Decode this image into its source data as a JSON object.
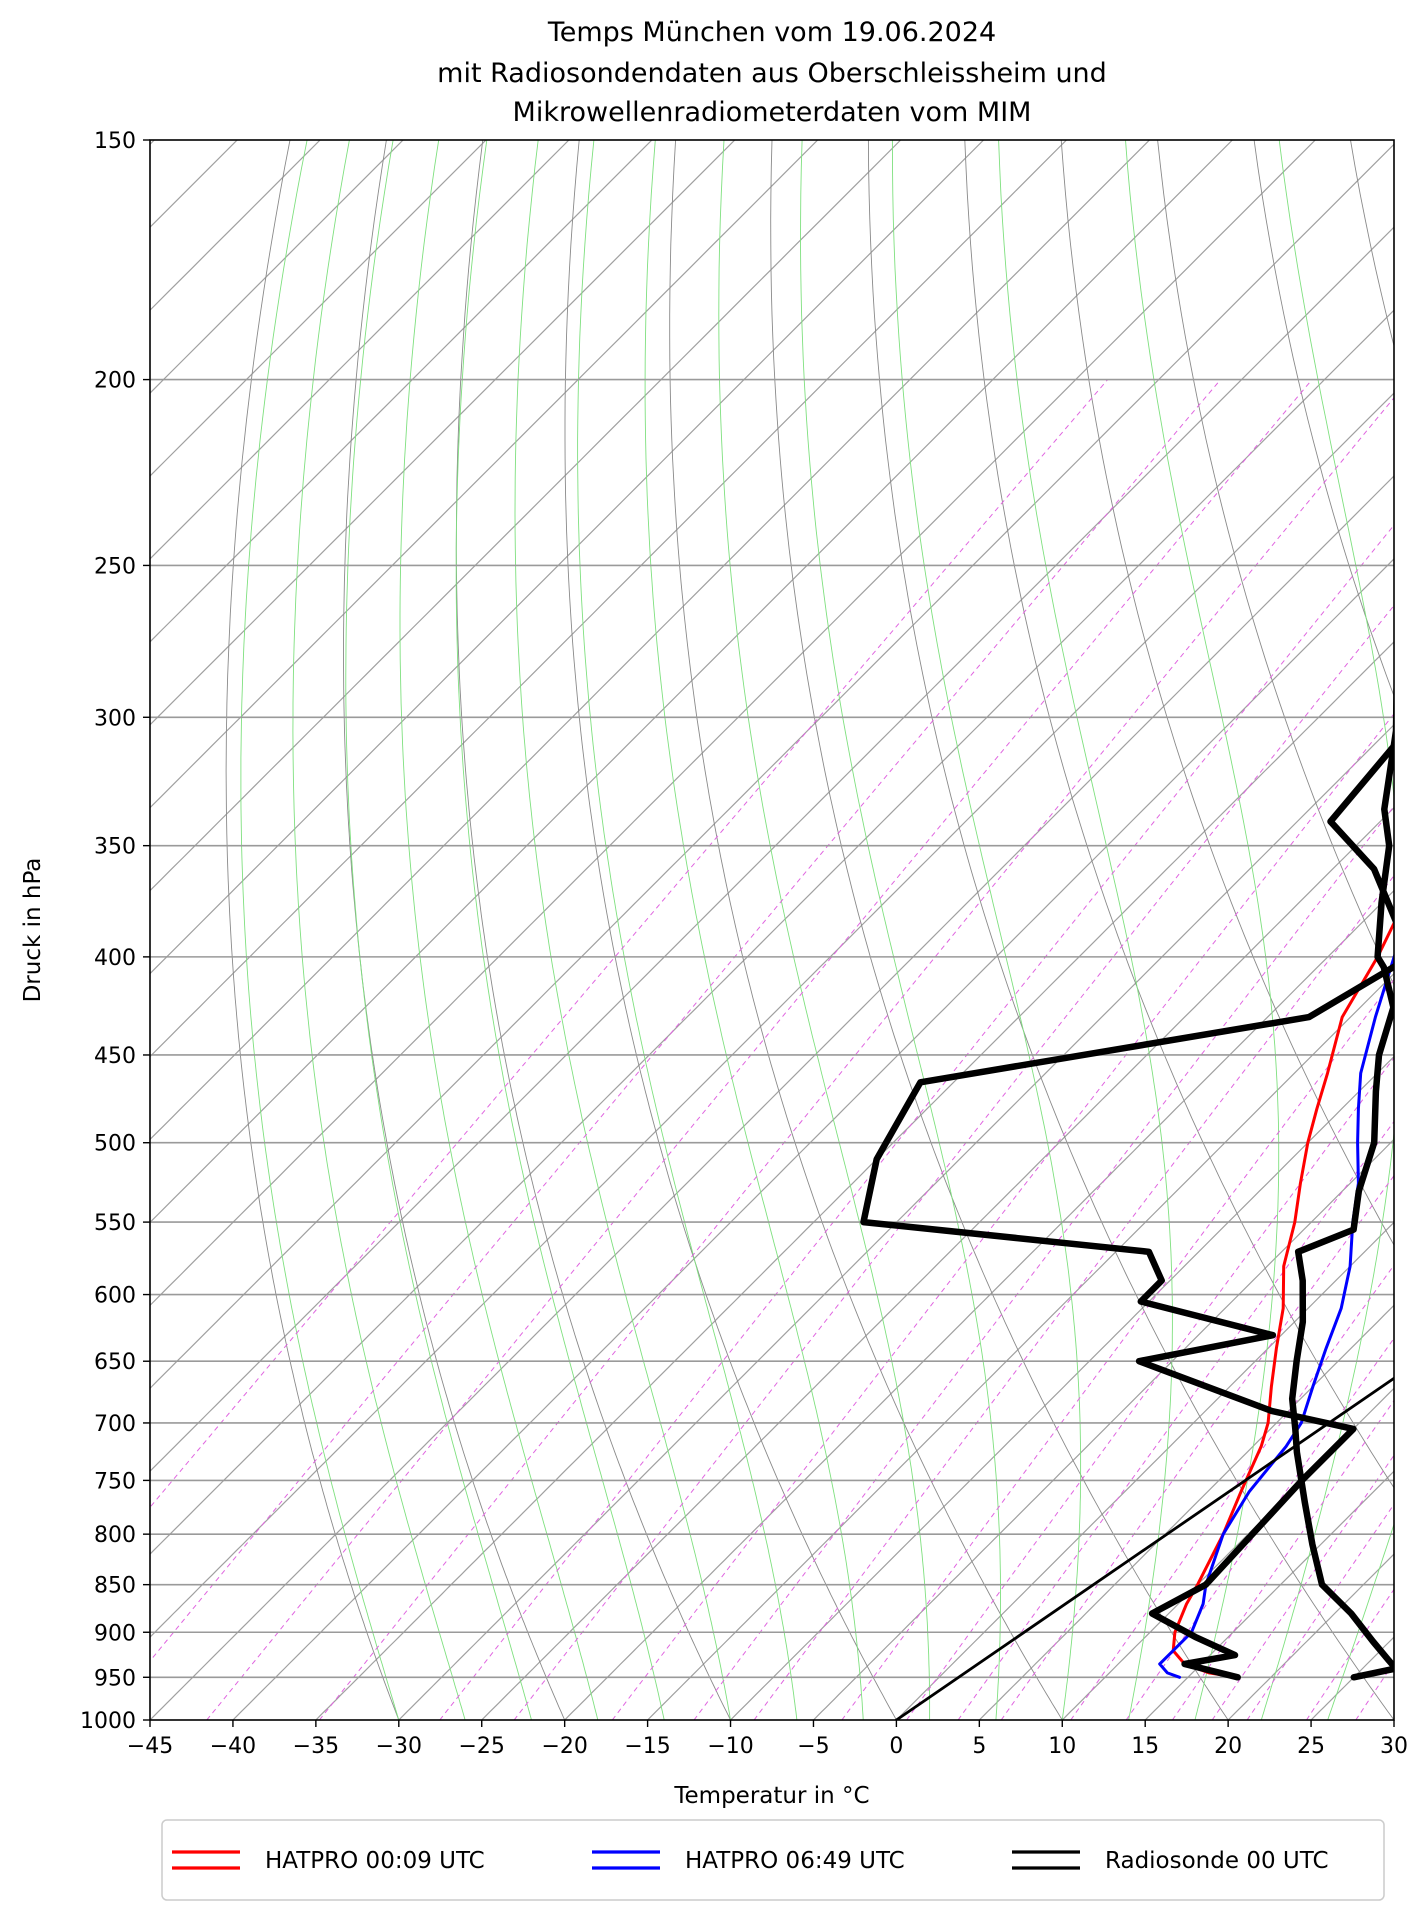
{
  "chart_data": {
    "type": "skew-t",
    "title": [
      "Temps München vom 19.06.2024",
      "mit Radiosondendaten aus Oberschleissheim und",
      "Mikrowellenradiometerdaten vom MIM"
    ],
    "xlabel": "Temperatur in °C",
    "ylabel": "Druck in hPa",
    "xlim": [
      -45,
      30
    ],
    "ylim": [
      1000,
      150
    ],
    "yscale": "log",
    "x_ticks": [
      "−45",
      "−40",
      "−35",
      "−30",
      "−25",
      "−20",
      "−15",
      "−10",
      "−5",
      "0",
      "5",
      "10",
      "15",
      "20",
      "25",
      "30"
    ],
    "y_ticks": [
      "150",
      "200",
      "250",
      "300",
      "350",
      "400",
      "450",
      "500",
      "550",
      "600",
      "650",
      "700",
      "750",
      "800",
      "850",
      "900",
      "950",
      "1000"
    ],
    "grid": true,
    "legend_position": "bottom",
    "series": [
      {
        "name": "HATPRO 00:09 UTC",
        "color": "#ff0000",
        "points": [
          [
            18,
            950
          ],
          [
            16,
            945
          ],
          [
            14,
            935
          ],
          [
            12.5,
            920
          ],
          [
            11.5,
            900
          ],
          [
            10.5,
            870
          ],
          [
            10,
            850
          ],
          [
            8.5,
            800
          ],
          [
            7,
            760
          ],
          [
            5.5,
            720
          ],
          [
            4.5,
            700
          ],
          [
            2.5,
            670
          ],
          [
            0.5,
            640
          ],
          [
            -1.5,
            610
          ],
          [
            -4,
            580
          ],
          [
            -6,
            550
          ],
          [
            -8,
            525
          ],
          [
            -10,
            500
          ],
          [
            -11.5,
            480
          ],
          [
            -13,
            460
          ],
          [
            -15.5,
            430
          ],
          [
            -17,
            400
          ],
          [
            -19,
            370
          ],
          [
            -20.5,
            340
          ],
          [
            -22,
            320
          ],
          [
            -24,
            295
          ],
          [
            -26,
            270
          ],
          [
            -28,
            252
          ]
        ]
      },
      {
        "name": "HATPRO 06:49 UTC",
        "color": "#0000ff",
        "points": [
          [
            14.5,
            950
          ],
          [
            13.5,
            945
          ],
          [
            12.5,
            935
          ],
          [
            12.5,
            920
          ],
          [
            12.5,
            900
          ],
          [
            11.5,
            870
          ],
          [
            10.5,
            850
          ],
          [
            8.5,
            800
          ],
          [
            7.5,
            760
          ],
          [
            7,
            720
          ],
          [
            6.5,
            700
          ],
          [
            5,
            670
          ],
          [
            3.5,
            640
          ],
          [
            2,
            610
          ],
          [
            0,
            580
          ],
          [
            -2.5,
            550
          ],
          [
            -4.5,
            525
          ],
          [
            -7,
            500
          ],
          [
            -9,
            480
          ],
          [
            -11,
            460
          ],
          [
            -13.5,
            430
          ],
          [
            -16,
            400
          ],
          [
            -18.5,
            370
          ],
          [
            -21,
            340
          ],
          [
            -22.5,
            320
          ],
          [
            -25,
            295
          ],
          [
            -27.5,
            270
          ],
          [
            -29.5,
            252
          ]
        ]
      },
      {
        "name": "Radiosonde 00 UTC",
        "color": "#000000",
        "points": [
          [
            18,
            950
          ],
          [
            14,
            935
          ],
          [
            16.5,
            925
          ],
          [
            13,
            905
          ],
          [
            9,
            880
          ],
          [
            10.5,
            850
          ],
          [
            10,
            750
          ],
          [
            10,
            705
          ],
          [
            4,
            690
          ],
          [
            -7,
            650
          ],
          [
            -0.5,
            630
          ],
          [
            -10.5,
            605
          ],
          [
            -10.5,
            590
          ],
          [
            -13,
            570
          ],
          [
            -32,
            550
          ],
          [
            -35,
            510
          ],
          [
            -37,
            465
          ],
          [
            -17.5,
            430
          ],
          [
            -15,
            400
          ],
          [
            -22.5,
            360
          ],
          [
            -28,
            340
          ],
          [
            -29,
            300
          ],
          [
            -24,
            280
          ],
          [
            -28,
            265
          ],
          [
            -33,
            250
          ],
          [
            -35,
            235
          ],
          [
            -35,
            205
          ],
          [
            -35,
            200
          ],
          [
            -36,
            198
          ],
          [
            -36,
            190
          ],
          [
            -38.5,
            186
          ],
          [
            -39,
            181
          ],
          [
            -42,
            175
          ],
          [
            -41.5,
            168
          ]
        ]
      },
      {
        "name": "",
        "color": "#000000",
        "points": [
          [
            25,
            950
          ],
          [
            27,
            940
          ],
          [
            26,
            930
          ],
          [
            24,
            910
          ],
          [
            21,
            880
          ],
          [
            17.5,
            850
          ],
          [
            14.5,
            810
          ],
          [
            11.5,
            770
          ],
          [
            8,
            725
          ],
          [
            6.5,
            705
          ],
          [
            4.5,
            680
          ],
          [
            2.5,
            650
          ],
          [
            0.5,
            620
          ],
          [
            -2,
            590
          ],
          [
            -4,
            570
          ],
          [
            -2,
            555
          ],
          [
            -4,
            530
          ],
          [
            -6,
            500
          ],
          [
            -9,
            470
          ],
          [
            -11,
            450
          ],
          [
            -13,
            425
          ],
          [
            -16,
            405
          ],
          [
            -17,
            400
          ],
          [
            -20,
            375
          ],
          [
            -23,
            350
          ],
          [
            -25.5,
            335
          ],
          [
            -29.5,
            305
          ],
          [
            -32,
            290
          ],
          [
            -35,
            265
          ],
          [
            -38,
            250
          ],
          [
            -41,
            235
          ],
          [
            -44,
            220
          ],
          [
            -46,
            210
          ],
          [
            -48,
            200
          ],
          [
            -49,
            195
          ],
          [
            -48,
            190
          ],
          [
            -48,
            185
          ],
          [
            -44,
            175
          ],
          [
            -42,
            165
          ],
          [
            -41.5,
            150
          ]
        ]
      },
      {
        "name": "",
        "color": "#000000",
        "points": [
          [
            0,
            1000
          ],
          [
            30,
            270
          ]
        ]
      }
    ]
  }
}
